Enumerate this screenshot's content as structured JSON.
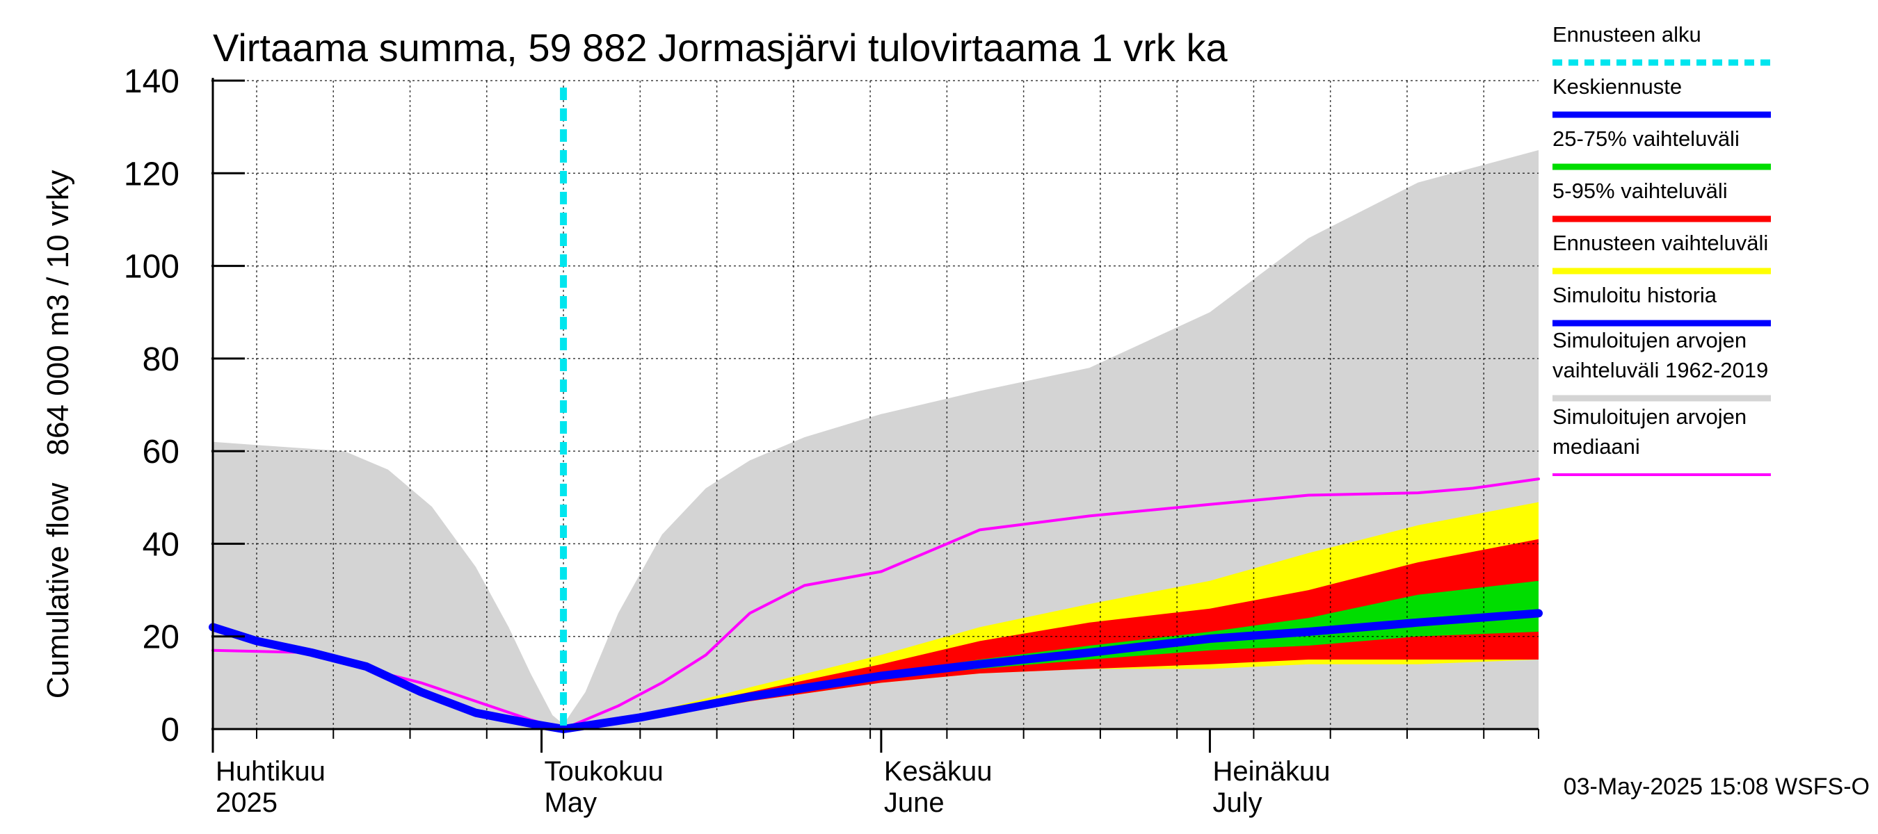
{
  "chart_data": {
    "type": "area",
    "title": "Virtaama summa, 59 882 Jormasjärvi tulovirtaama 1 vrk ka",
    "ylabel_lines": [
      "864 000 m3 / 10 vrky",
      "Cumulative flow"
    ],
    "ylim": [
      0,
      140
    ],
    "yticks": [
      0,
      20,
      40,
      60,
      80,
      100,
      120,
      140
    ],
    "xlim": [
      "2025-04-01",
      "2025-07-31"
    ],
    "grid": true,
    "legend_position": "right",
    "month_labels": [
      {
        "date": "2025-04-01",
        "fi": "Huhtikuu",
        "en": "2025"
      },
      {
        "date": "2025-05-01",
        "fi": "Toukokuu",
        "en": "May"
      },
      {
        "date": "2025-06-01",
        "fi": "Kesäkuu",
        "en": "June"
      },
      {
        "date": "2025-07-01",
        "fi": "Heinäkuu",
        "en": "July"
      }
    ],
    "forecast_start": "2025-05-03",
    "colors": {
      "forecast_start": "#00e5ee",
      "mean_forecast": "#0000ff",
      "range_25_75": "#00dd00",
      "range_5_95": "#ff0000",
      "forecast_range": "#ffff00",
      "simulated_history": "#0000ff",
      "historical_range": "#d4d4d4",
      "historical_median": "#ff00ff"
    },
    "legend": [
      {
        "key": "forecast_start",
        "lines": [
          "Ennusteen alku"
        ],
        "style": "dashed"
      },
      {
        "key": "mean_forecast",
        "lines": [
          "Keskiennuste"
        ],
        "style": "solid"
      },
      {
        "key": "range_25_75",
        "lines": [
          "25-75% vaihteluväli"
        ],
        "style": "solid"
      },
      {
        "key": "range_5_95",
        "lines": [
          "5-95% vaihteluväli"
        ],
        "style": "solid"
      },
      {
        "key": "forecast_range",
        "lines": [
          "Ennusteen vaihteluväli"
        ],
        "style": "solid"
      },
      {
        "key": "simulated_history",
        "lines": [
          "Simuloitu historia"
        ],
        "style": "solid"
      },
      {
        "key": "historical_range",
        "lines": [
          "Simuloitujen arvojen",
          "vaihteluväli 1962-2019"
        ],
        "style": "solid"
      },
      {
        "key": "historical_median",
        "lines": [
          "Simuloitujen arvojen",
          "mediaani"
        ],
        "style": "solid"
      }
    ],
    "series": {
      "historical_range": {
        "x": [
          "2025-04-01",
          "2025-04-07",
          "2025-04-13",
          "2025-04-17",
          "2025-04-21",
          "2025-04-25",
          "2025-04-28",
          "2025-04-30",
          "2025-05-02",
          "2025-05-03",
          "2025-05-05",
          "2025-05-08",
          "2025-05-12",
          "2025-05-16",
          "2025-05-20",
          "2025-05-25",
          "2025-06-01",
          "2025-06-10",
          "2025-06-20",
          "2025-07-01",
          "2025-07-10",
          "2025-07-20",
          "2025-07-31"
        ],
        "upper": [
          62,
          61,
          60,
          56,
          48,
          35,
          22,
          12,
          3,
          1,
          8,
          25,
          42,
          52,
          58,
          63,
          68,
          73,
          78,
          90,
          106,
          118,
          125
        ],
        "lower": [
          0,
          0,
          0,
          0,
          0,
          0,
          0,
          0,
          0,
          0,
          0,
          0,
          0,
          0,
          0,
          0,
          0,
          0,
          0,
          0,
          0,
          0,
          0
        ]
      },
      "forecast_range": {
        "x": [
          "2025-05-03",
          "2025-05-10",
          "2025-05-20",
          "2025-06-01",
          "2025-06-10",
          "2025-06-20",
          "2025-07-01",
          "2025-07-10",
          "2025-07-20",
          "2025-07-31"
        ],
        "upper": [
          0,
          3,
          9,
          16,
          22,
          27,
          32,
          38,
          44,
          49
        ],
        "lower": [
          0,
          2,
          6,
          10,
          12,
          13,
          13,
          14,
          14,
          15
        ]
      },
      "range_5_95": {
        "x": [
          "2025-05-03",
          "2025-05-10",
          "2025-05-20",
          "2025-06-01",
          "2025-06-10",
          "2025-06-20",
          "2025-07-01",
          "2025-07-10",
          "2025-07-20",
          "2025-07-31"
        ],
        "upper": [
          0,
          3,
          8,
          14,
          19,
          23,
          26,
          30,
          36,
          41
        ],
        "lower": [
          0,
          2,
          6,
          10,
          12,
          13,
          14,
          15,
          15,
          15
        ]
      },
      "range_25_75": {
        "x": [
          "2025-05-03",
          "2025-05-10",
          "2025-05-20",
          "2025-06-01",
          "2025-06-10",
          "2025-06-20",
          "2025-07-01",
          "2025-07-10",
          "2025-07-20",
          "2025-07-31"
        ],
        "upper": [
          0,
          2.7,
          7.5,
          12,
          15,
          18,
          21,
          24,
          29,
          32
        ],
        "lower": [
          0,
          2.3,
          6.5,
          11,
          13,
          15,
          17,
          18,
          20,
          21
        ]
      },
      "simulated_history": {
        "x": [
          "2025-04-01",
          "2025-04-05",
          "2025-04-10",
          "2025-04-15",
          "2025-04-20",
          "2025-04-25",
          "2025-04-30",
          "2025-05-03"
        ],
        "y": [
          22,
          19,
          16.5,
          13.5,
          8,
          3.5,
          1.2,
          0
        ]
      },
      "mean_forecast": {
        "x": [
          "2025-05-03",
          "2025-05-10",
          "2025-05-20",
          "2025-06-01",
          "2025-06-10",
          "2025-06-20",
          "2025-07-01",
          "2025-07-10",
          "2025-07-20",
          "2025-07-31"
        ],
        "y": [
          0,
          2.5,
          7,
          11.5,
          14,
          16.5,
          19.5,
          21,
          23,
          25
        ]
      },
      "historical_median": {
        "x": [
          "2025-04-01",
          "2025-04-10",
          "2025-04-15",
          "2025-04-20",
          "2025-04-25",
          "2025-04-30",
          "2025-05-03",
          "2025-05-08",
          "2025-05-12",
          "2025-05-16",
          "2025-05-20",
          "2025-05-25",
          "2025-06-01",
          "2025-06-05",
          "2025-06-10",
          "2025-06-20",
          "2025-07-01",
          "2025-07-10",
          "2025-07-20",
          "2025-07-25",
          "2025-07-31"
        ],
        "y": [
          17,
          16.5,
          13,
          10,
          6,
          2,
          0,
          5,
          10,
          16,
          25,
          31,
          34,
          38,
          43,
          46,
          48.5,
          50.5,
          51,
          52,
          54
        ]
      }
    }
  },
  "timestamp": "03-May-2025 15:08 WSFS-O"
}
